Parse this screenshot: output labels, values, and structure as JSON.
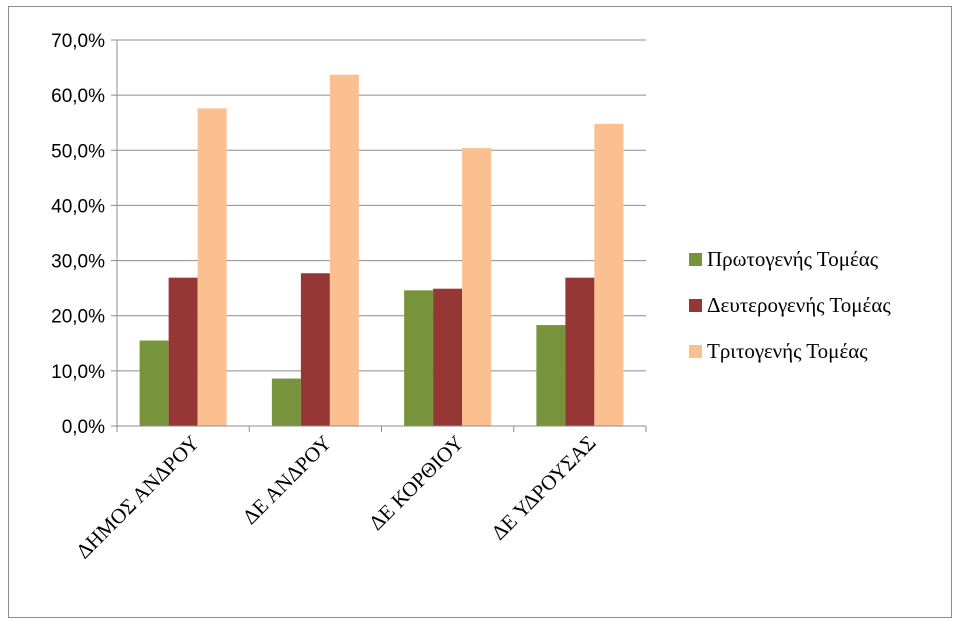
{
  "chart_data": {
    "type": "bar",
    "categories": [
      "ΔΗΜΟΣ ΑΝΔΡΟΥ",
      "ΔΕ ΑΝΔΡΟΥ",
      "ΔΕ ΚΟΡΘΙΟΥ",
      "ΔΕ ΥΔΡΟΥΣΑΣ"
    ],
    "series": [
      {
        "name": "Πρωτογενής Τομέας",
        "color": "#77933c",
        "values": [
          15.5,
          8.6,
          24.6,
          18.3
        ]
      },
      {
        "name": "Δευτερογενής Τομέας",
        "color": "#953735",
        "values": [
          26.9,
          27.7,
          24.9,
          26.9
        ]
      },
      {
        "name": "Τριτογενής Τομέας",
        "color": "#fac090",
        "values": [
          57.6,
          63.7,
          50.4,
          54.8
        ]
      }
    ],
    "y_ticks": [
      "0,0%",
      "10,0%",
      "20,0%",
      "30,0%",
      "40,0%",
      "50,0%",
      "60,0%",
      "70,0%"
    ],
    "ylim": [
      0,
      70
    ],
    "grid": true,
    "legend_position": "right"
  }
}
